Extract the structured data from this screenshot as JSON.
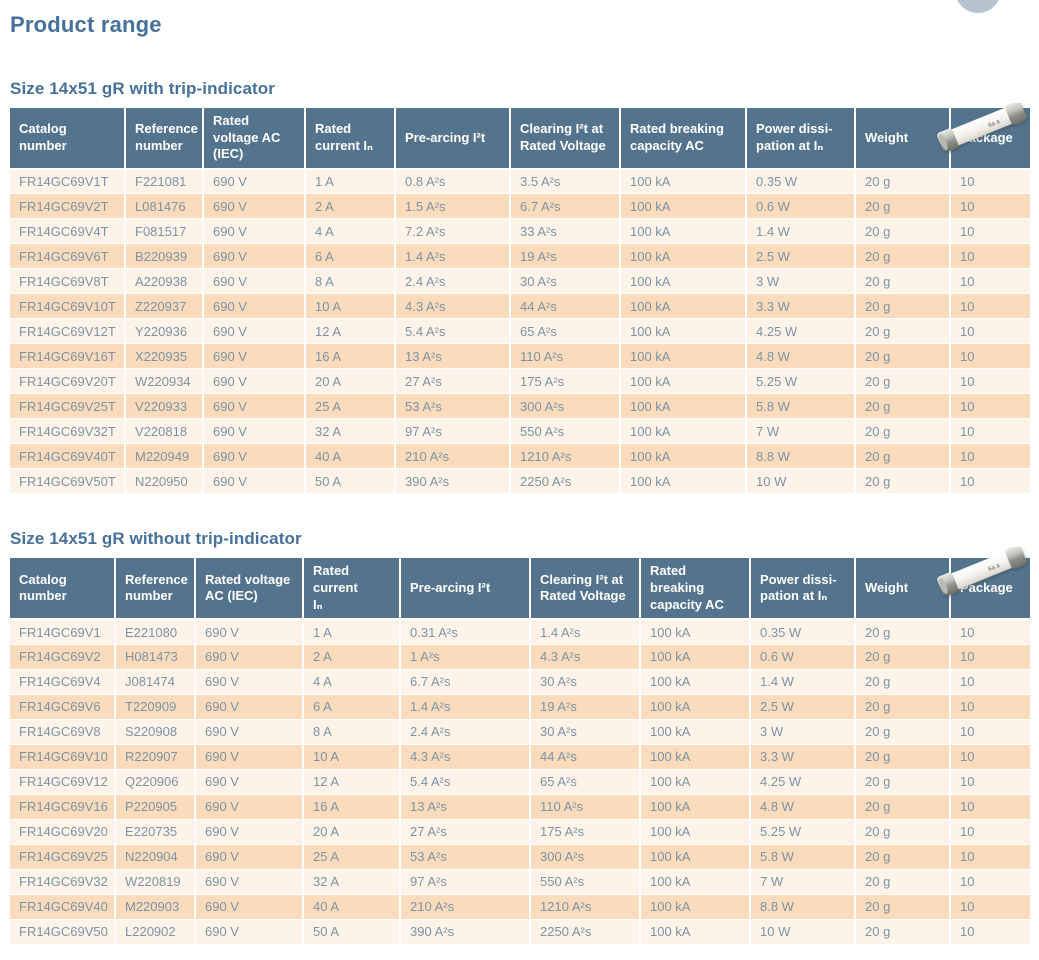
{
  "page": {
    "title": "Product range"
  },
  "colors": {
    "table_header_bg": "#54748e",
    "row_light": "#fdf3e9",
    "row_peach": "#fadcbc",
    "cell_text": "#7d93a4",
    "heading_text": "#45719a",
    "corner_circle": "#b5c4cf"
  },
  "decorations": {
    "corner_circle": "partial-circle-top-right",
    "section_image": "cylindrical-cartridge-fuse-photo"
  },
  "sections": [
    {
      "heading": "Size 14x51 gR with trip-indicator",
      "table": {
        "headers": [
          "Catalog\nnumber",
          "Reference\nnumber",
          "Rated\nvoltage AC\n(IEC)",
          "Rated\ncurrent Iₙ",
          "Pre-arcing I²t",
          "Clearing I²t at\nRated Voltage",
          "Rated breaking\ncapacity AC",
          "Power dissi-\npation at Iₙ",
          "Weight",
          "Package"
        ],
        "rows": [
          [
            "FR14GC69V1T",
            "F221081",
            "690 V",
            "1 A",
            "0.8 A²s",
            "3.5 A²s",
            "100 kA",
            "0.35 W",
            "20 g",
            "10"
          ],
          [
            "FR14GC69V2T",
            "L081476",
            "690 V",
            "2 A",
            "1.5 A²s",
            "6.7 A²s",
            "100 kA",
            "0.6 W",
            "20 g",
            "10"
          ],
          [
            "FR14GC69V4T",
            "F081517",
            "690 V",
            "4 A",
            "7.2 A²s",
            "33 A²s",
            "100 kA",
            "1.4 W",
            "20 g",
            "10"
          ],
          [
            "FR14GC69V6T",
            "B220939",
            "690 V",
            "6 A",
            "1.4 A²s",
            "19 A²s",
            "100 kA",
            "2.5 W",
            "20 g",
            "10"
          ],
          [
            "FR14GC69V8T",
            "A220938",
            "690 V",
            "8 A",
            "2.4 A²s",
            "30 A²s",
            "100 kA",
            "3 W",
            "20 g",
            "10"
          ],
          [
            "FR14GC69V10T",
            "Z220937",
            "690 V",
            "10 A",
            "4.3 A²s",
            "44 A²s",
            "100 kA",
            "3.3 W",
            "20 g",
            "10"
          ],
          [
            "FR14GC69V12T",
            "Y220936",
            "690 V",
            "12 A",
            "5.4 A²s",
            "65 A²s",
            "100 kA",
            "4.25 W",
            "20 g",
            "10"
          ],
          [
            "FR14GC69V16T",
            "X220935",
            "690 V",
            "16 A",
            "13 A²s",
            "110 A²s",
            "100 kA",
            "4.8 W",
            "20 g",
            "10"
          ],
          [
            "FR14GC69V20T",
            "W220934",
            "690 V",
            "20 A",
            "27 A²s",
            "175 A²s",
            "100 kA",
            "5.25 W",
            "20 g",
            "10"
          ],
          [
            "FR14GC69V25T",
            "V220933",
            "690 V",
            "25 A",
            "53 A²s",
            "300 A²s",
            "100 kA",
            "5.8 W",
            "20 g",
            "10"
          ],
          [
            "FR14GC69V32T",
            "V220818",
            "690 V",
            "32 A",
            "97 A²s",
            "550 A²s",
            "100 kA",
            "7 W",
            "20 g",
            "10"
          ],
          [
            "FR14GC69V40T",
            "M220949",
            "690 V",
            "40 A",
            "210 A²s",
            "1210 A²s",
            "100 kA",
            "8.8 W",
            "20 g",
            "10"
          ],
          [
            "FR14GC69V50T",
            "N220950",
            "690 V",
            "50 A",
            "390 A²s",
            "2250 A²s",
            "100 kA",
            "10 W",
            "20 g",
            "10"
          ]
        ]
      }
    },
    {
      "heading": "Size 14x51 gR without trip-indicator",
      "table": {
        "headers": [
          "Catalog\nnumber",
          "Reference\nnumber",
          "Rated voltage\nAC (IEC)",
          "Rated current\nIₙ",
          "Pre-arcing I²t",
          "Clearing I²t at\nRated Voltage",
          "Rated breaking\ncapacity AC",
          "Power dissi-\npation at Iₙ",
          "Weight",
          "Package"
        ],
        "rows": [
          [
            "FR14GC69V1",
            "E221080",
            "690 V",
            "1 A",
            "0.31 A²s",
            "1.4 A²s",
            "100 kA",
            "0.35 W",
            "20 g",
            "10"
          ],
          [
            "FR14GC69V2",
            "H081473",
            "690 V",
            "2 A",
            "1 A²s",
            "4.3 A²s",
            "100 kA",
            "0.6 W",
            "20 g",
            "10"
          ],
          [
            "FR14GC69V4",
            "J081474",
            "690 V",
            "4 A",
            "6.7 A²s",
            "30 A²s",
            "100 kA",
            "1.4 W",
            "20 g",
            "10"
          ],
          [
            "FR14GC69V6",
            "T220909",
            "690 V",
            "6 A",
            "1.4 A²s",
            "19 A²s",
            "100 kA",
            "2.5 W",
            "20 g",
            "10"
          ],
          [
            "FR14GC69V8",
            "S220908",
            "690 V",
            "8 A",
            "2.4 A²s",
            "30 A²s",
            "100 kA",
            "3 W",
            "20 g",
            "10"
          ],
          [
            "FR14GC69V10",
            "R220907",
            "690 V",
            "10 A",
            "4.3 A²s",
            "44 A²s",
            "100 kA",
            "3.3 W",
            "20 g",
            "10"
          ],
          [
            "FR14GC69V12",
            "Q220906",
            "690 V",
            "12 A",
            "5.4 A²s",
            "65 A²s",
            "100 kA",
            "4.25 W",
            "20 g",
            "10"
          ],
          [
            "FR14GC69V16",
            "P220905",
            "690 V",
            "16 A",
            "13 A²s",
            "110 A²s",
            "100 kA",
            "4.8 W",
            "20 g",
            "10"
          ],
          [
            "FR14GC69V20",
            "E220735",
            "690 V",
            "20 A",
            "27 A²s",
            "175 A²s",
            "100 kA",
            "5.25 W",
            "20 g",
            "10"
          ],
          [
            "FR14GC69V25",
            "N220904",
            "690 V",
            "25 A",
            "53 A²s",
            "300 A²s",
            "100 kA",
            "5.8 W",
            "20 g",
            "10"
          ],
          [
            "FR14GC69V32",
            "W220819",
            "690 V",
            "32 A",
            "97 A²s",
            "550 A²s",
            "100 kA",
            "7 W",
            "20 g",
            "10"
          ],
          [
            "FR14GC69V40",
            "M220903",
            "690 V",
            "40 A",
            "210 A²s",
            "1210 A²s",
            "100 kA",
            "8.8 W",
            "20 g",
            "10"
          ],
          [
            "FR14GC69V50",
            "L220902",
            "690 V",
            "50 A",
            "390 A²s",
            "2250 A²s",
            "100 kA",
            "10 W",
            "20 g",
            "10"
          ]
        ]
      }
    }
  ]
}
